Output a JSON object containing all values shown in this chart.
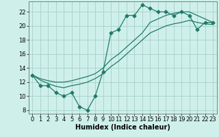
{
  "bg_color": "#cff0ea",
  "grid_color": "#aad4cc",
  "line_color": "#217a6a",
  "marker": "D",
  "markersize": 2.5,
  "linewidth": 0.9,
  "xlabel": "Humidex (Indice chaleur)",
  "xlabel_fontsize": 7,
  "tick_fontsize": 6,
  "ylim": [
    7.5,
    23.5
  ],
  "xlim": [
    -0.5,
    23.5
  ],
  "yticks": [
    8,
    10,
    12,
    14,
    16,
    18,
    20,
    22
  ],
  "xticks": [
    0,
    1,
    2,
    3,
    4,
    5,
    6,
    7,
    8,
    9,
    10,
    11,
    12,
    13,
    14,
    15,
    16,
    17,
    18,
    19,
    20,
    21,
    22,
    23
  ],
  "series1_x": [
    0,
    1,
    2,
    3,
    4,
    5,
    6,
    7,
    8,
    9,
    10,
    11,
    12,
    13,
    14,
    15,
    16,
    17,
    18,
    19,
    20,
    21,
    22,
    23
  ],
  "series1_y": [
    13,
    11.5,
    11.5,
    10.5,
    10.0,
    10.5,
    8.5,
    8.0,
    10.0,
    13.5,
    19.0,
    19.5,
    21.5,
    21.5,
    23.0,
    22.5,
    22.0,
    22.0,
    21.5,
    22.0,
    21.5,
    19.5,
    20.5,
    20.5
  ],
  "series2_x": [
    0,
    1,
    2,
    3,
    4,
    5,
    6,
    7,
    8,
    9,
    10,
    11,
    12,
    13,
    14,
    15,
    16,
    17,
    18,
    19,
    20,
    21,
    22,
    23
  ],
  "series2_y": [
    13.0,
    12.3,
    11.8,
    11.4,
    11.2,
    11.5,
    11.7,
    12.0,
    12.5,
    13.2,
    14.2,
    15.0,
    16.0,
    17.0,
    18.0,
    19.0,
    19.5,
    20.0,
    20.3,
    20.5,
    20.8,
    20.5,
    20.3,
    20.2
  ],
  "series3_x": [
    0,
    1,
    2,
    3,
    4,
    5,
    6,
    7,
    8,
    9,
    10,
    11,
    12,
    13,
    14,
    15,
    16,
    17,
    18,
    19,
    20,
    21,
    22,
    23
  ],
  "series3_y": [
    13.0,
    12.5,
    12.2,
    12.0,
    12.0,
    12.2,
    12.5,
    12.8,
    13.2,
    14.0,
    15.2,
    16.0,
    17.0,
    18.0,
    19.0,
    20.5,
    21.0,
    21.5,
    21.8,
    22.0,
    22.0,
    21.5,
    21.0,
    20.5
  ]
}
